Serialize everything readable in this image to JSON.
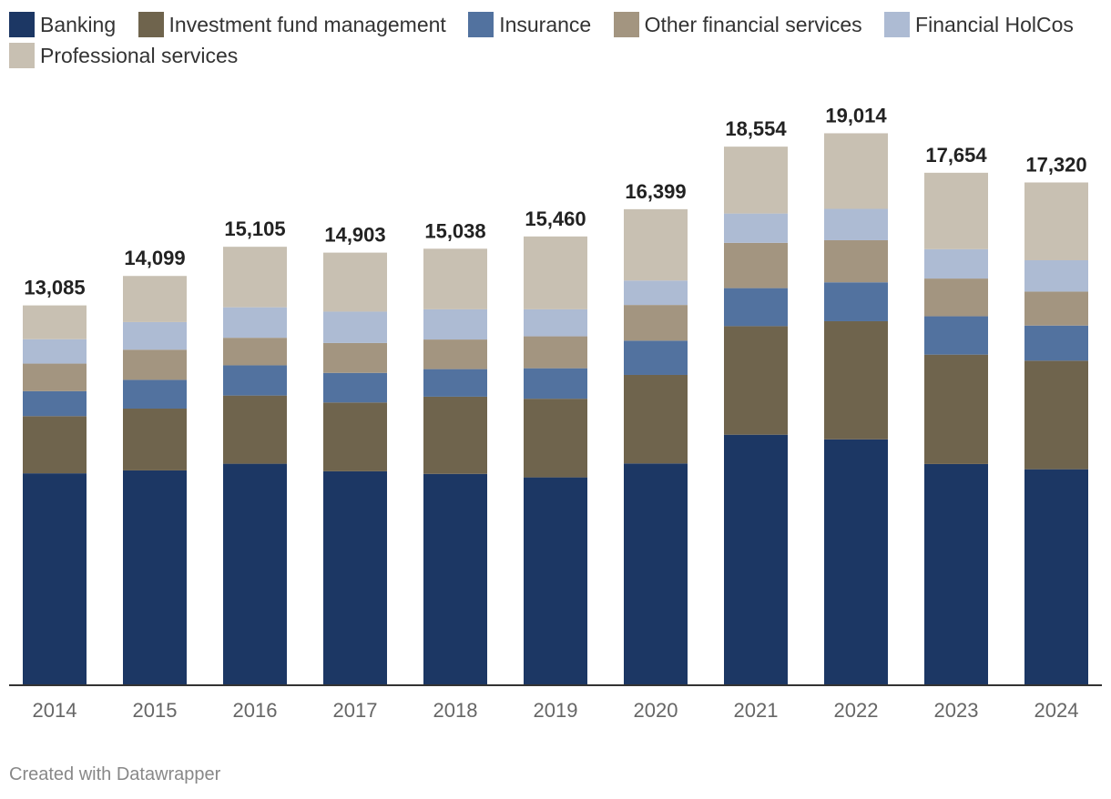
{
  "chart_data": {
    "type": "bar",
    "stacked": true,
    "title": "",
    "xlabel": "",
    "ylabel": "",
    "ylim": [
      0,
      20000
    ],
    "categories": [
      "2014",
      "2015",
      "2016",
      "2017",
      "2018",
      "2019",
      "2020",
      "2021",
      "2022",
      "2023",
      "2024"
    ],
    "totals": [
      13085,
      14099,
      15105,
      14903,
      15038,
      15460,
      16399,
      18554,
      19014,
      17654,
      17320
    ],
    "total_labels": [
      "13,085",
      "14,099",
      "15,105",
      "14,903",
      "15,038",
      "15,460",
      "16,399",
      "18,554",
      "19,014",
      "17,654",
      "17,320"
    ],
    "series": [
      {
        "name": "Banking",
        "color": "#1c3764",
        "values": [
          7300,
          7400,
          7630,
          7370,
          7280,
          7160,
          7640,
          8630,
          8470,
          7620,
          7440
        ]
      },
      {
        "name": "Investment fund management",
        "color": "#6f644d",
        "values": [
          1970,
          2130,
          2350,
          2370,
          2660,
          2710,
          3050,
          3740,
          4070,
          3770,
          3740
        ]
      },
      {
        "name": "Insurance",
        "color": "#52729f",
        "values": [
          860,
          990,
          1040,
          1020,
          950,
          1050,
          1180,
          1310,
          1340,
          1320,
          1210
        ]
      },
      {
        "name": "Other financial services",
        "color": "#a39580",
        "values": [
          950,
          1040,
          950,
          1030,
          1020,
          1100,
          1230,
          1560,
          1450,
          1300,
          1170
        ]
      },
      {
        "name": "Financial HolCos",
        "color": "#adbbd3",
        "values": [
          840,
          950,
          1050,
          1080,
          1040,
          930,
          840,
          1010,
          1080,
          1010,
          1080
        ]
      },
      {
        "name": "Professional services",
        "color": "#c8c0b2",
        "values": [
          1165,
          1589,
          2085,
          2033,
          2088,
          2510,
          2459,
          2304,
          2604,
          2634,
          2680
        ]
      }
    ],
    "legend_position": "top-left",
    "grid": false
  },
  "footer": "Created with Datawrapper"
}
